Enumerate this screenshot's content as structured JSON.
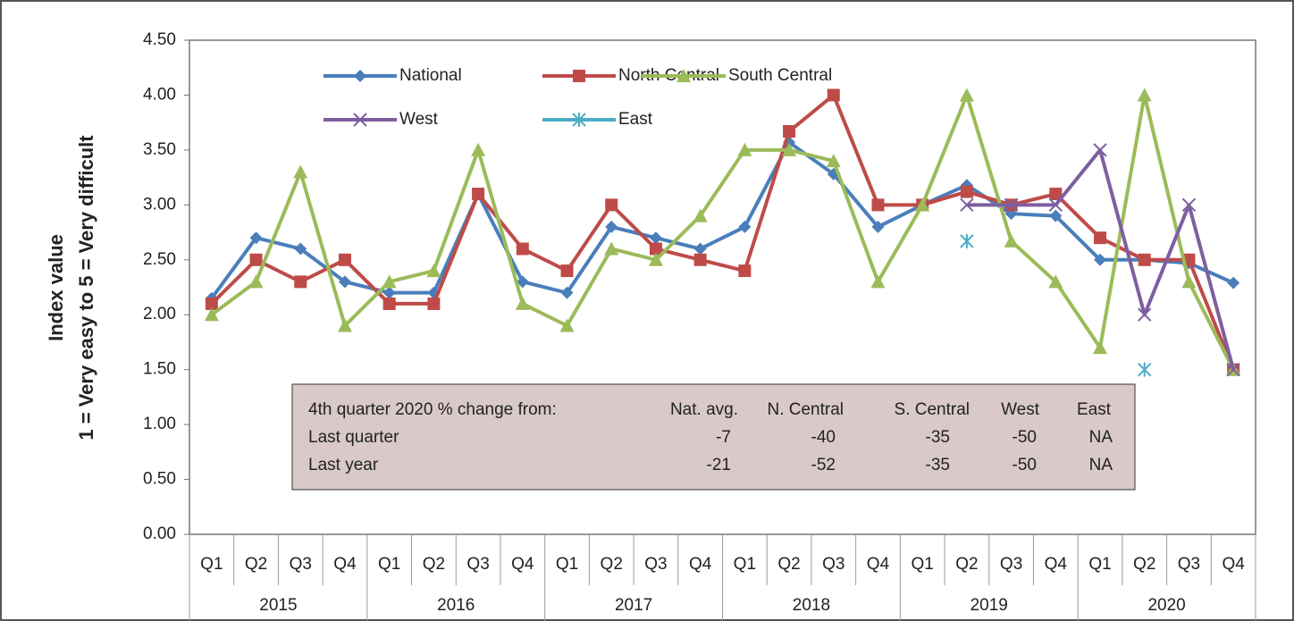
{
  "chart_data": {
    "type": "line",
    "ylabel": [
      "Index value",
      "1 = Very easy to 5 = Very difficult"
    ],
    "categories": [
      "Q1",
      "Q2",
      "Q3",
      "Q4",
      "Q1",
      "Q2",
      "Q3",
      "Q4",
      "Q1",
      "Q2",
      "Q3",
      "Q4",
      "Q1",
      "Q2",
      "Q3",
      "Q4",
      "Q1",
      "Q2",
      "Q3",
      "Q4",
      "Q1",
      "Q2",
      "Q3",
      "Q4"
    ],
    "category_groups": [
      "2015",
      "2016",
      "2017",
      "2018",
      "2019",
      "2020"
    ],
    "ylim": [
      0,
      4.5
    ],
    "yticks": [
      {
        "value": 0,
        "label": "0.00"
      },
      {
        "value": 0.5,
        "label": "0.50"
      },
      {
        "value": 1,
        "label": "1.00"
      },
      {
        "value": 1.5,
        "label": "1.50"
      },
      {
        "value": 2,
        "label": "2.00"
      },
      {
        "value": 2.5,
        "label": "2.50"
      },
      {
        "value": 3,
        "label": "3.00"
      },
      {
        "value": 3.5,
        "label": "3.50"
      },
      {
        "value": 4,
        "label": "4.00"
      },
      {
        "value": 4.5,
        "label": "4.50"
      }
    ],
    "series": [
      {
        "name": "National",
        "color": "#4a7ebb",
        "marker": "diamond",
        "values": [
          2.15,
          2.7,
          2.6,
          2.3,
          2.2,
          2.2,
          3.1,
          2.3,
          2.2,
          2.8,
          2.7,
          2.6,
          2.8,
          3.57,
          3.28,
          2.8,
          3.0,
          3.18,
          2.92,
          2.9,
          2.5,
          2.5,
          2.47,
          2.29
        ]
      },
      {
        "name": "North Central",
        "color": "#be4b48",
        "marker": "square",
        "values": [
          2.1,
          2.5,
          2.3,
          2.5,
          2.1,
          2.1,
          3.1,
          2.6,
          2.4,
          3.0,
          2.6,
          2.5,
          2.4,
          3.67,
          4.0,
          3.0,
          3.0,
          3.12,
          3.0,
          3.1,
          2.7,
          2.5,
          2.5,
          1.5
        ]
      },
      {
        "name": "South Central",
        "color": "#9bbb59",
        "marker": "triangle",
        "values": [
          2.0,
          2.3,
          3.3,
          1.9,
          2.3,
          2.4,
          3.5,
          2.1,
          1.9,
          2.6,
          2.5,
          2.9,
          3.5,
          3.5,
          3.4,
          2.3,
          3.0,
          4.0,
          2.67,
          2.3,
          1.7,
          4.0,
          2.3,
          1.5
        ]
      },
      {
        "name": "West",
        "color": "#7d5fa0",
        "marker": "x",
        "values": [
          null,
          null,
          null,
          null,
          null,
          null,
          null,
          null,
          null,
          null,
          null,
          null,
          null,
          null,
          null,
          null,
          null,
          3.0,
          3.0,
          3.0,
          3.5,
          2.0,
          3.0,
          1.5
        ]
      },
      {
        "name": "East",
        "color": "#4bacc6",
        "marker": "star",
        "values": [
          null,
          null,
          null,
          null,
          null,
          null,
          null,
          null,
          null,
          null,
          null,
          null,
          null,
          null,
          null,
          null,
          null,
          2.67,
          null,
          null,
          null,
          1.5,
          null,
          null
        ]
      }
    ],
    "annotation_table": {
      "header": [
        "4th quarter 2020 % change from:",
        "Nat. avg.",
        "N. Central",
        "S. Central",
        "West",
        "East"
      ],
      "rows": [
        [
          "Last quarter",
          -7,
          -40,
          -35,
          -50,
          "NA"
        ],
        [
          "Last year",
          -21,
          -52,
          -35,
          -50,
          "NA"
        ]
      ]
    }
  }
}
